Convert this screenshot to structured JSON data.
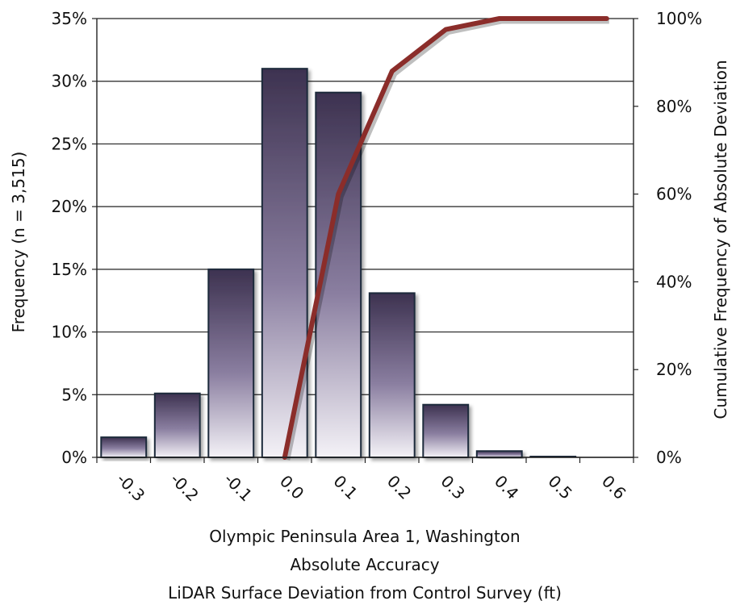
{
  "chart_data": {
    "type": "bar",
    "categories": [
      "-0.3",
      "-0.2",
      "-0.1",
      "0.0",
      "0.1",
      "0.2",
      "0.3",
      "0.4",
      "0.5",
      "0.6"
    ],
    "series": [
      {
        "values": [
          1.6,
          5.1,
          15.0,
          31.0,
          29.1,
          13.1,
          4.2,
          0.5,
          0.1,
          0.0
        ]
      }
    ],
    "line_series": [
      {
        "axis": "right",
        "values": [
          0,
          60,
          88,
          97.5,
          100,
          100,
          100
        ]
      }
    ],
    "line_x_start_index": 3,
    "xlabel_lines": [
      "Olympic Peninsula Area 1, Washington",
      "Absolute Accuracy",
      "LiDAR Surface Deviation from Control Survey (ft)"
    ],
    "ylabel": "Frequency (n = 3,515)",
    "y2label": "Cumulative Frequency of Absolute Deviation",
    "ylim": [
      0,
      35
    ],
    "y_ticks": [
      "0%",
      "5%",
      "10%",
      "15%",
      "20%",
      "25%",
      "30%",
      "35%"
    ],
    "y2lim": [
      0,
      100
    ],
    "y2_ticks": [
      "0%",
      "20%",
      "40%",
      "60%",
      "80%",
      "100%"
    ],
    "grid": true,
    "colors": {
      "bar_dark": "#3d3250",
      "bar_light": "#f4f2f7",
      "line": "#8b2d2a"
    }
  }
}
